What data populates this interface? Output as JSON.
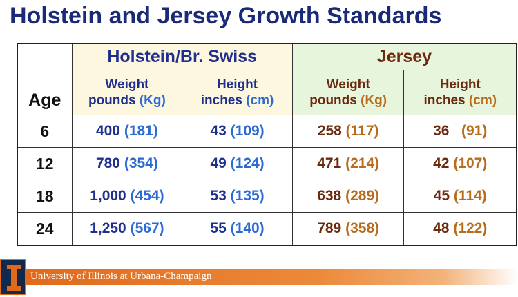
{
  "title": "Holstein and Jersey Growth Standards",
  "table": {
    "age_header": "Age",
    "groups": {
      "holstein": "Holstein/Br. Swiss",
      "jersey": "Jersey"
    },
    "subheaders": {
      "weight_line1": "Weight",
      "weight_line2_word": "pounds",
      "weight_line2_unit": "(Kg)",
      "height_line1": "Height",
      "height_line2_word": "inches",
      "height_line2_unit": "(cm)"
    },
    "rows": [
      {
        "age": "6",
        "hol_weight": "400",
        "hol_weight_kg": "(181)",
        "hol_height": "43",
        "hol_height_cm": "(109)",
        "jer_weight": "258",
        "jer_weight_kg": "(117)",
        "jer_height": "36",
        "jer_height_cm": "(91)"
      },
      {
        "age": "12",
        "hol_weight": "780",
        "hol_weight_kg": "(354)",
        "hol_height": "49",
        "hol_height_cm": "(124)",
        "jer_weight": "471",
        "jer_weight_kg": "(214)",
        "jer_height": "42",
        "jer_height_cm": "(107)"
      },
      {
        "age": "18",
        "hol_weight": "1,000",
        "hol_weight_kg": "(454)",
        "hol_height": "53",
        "hol_height_cm": "(135)",
        "jer_weight": "638",
        "jer_weight_kg": "(289)",
        "jer_height": "45",
        "jer_height_cm": "(114)"
      },
      {
        "age": "24",
        "hol_weight": "1,250",
        "hol_weight_kg": "(567)",
        "hol_height": "55",
        "hol_height_cm": "(140)",
        "jer_weight": "789",
        "jer_weight_kg": "(358)",
        "jer_height": "48",
        "jer_height_cm": "(122)"
      }
    ]
  },
  "footer": {
    "institution": "University of Illinois at Urbana-Champaign",
    "logo_icon": "block-i-logo"
  },
  "colors": {
    "title": "#1a2a78",
    "holstein_text": "#1f2f8e",
    "holstein_unit": "#2d6bd4",
    "jersey_text": "#6b2a10",
    "jersey_unit": "#b86b1a",
    "holstein_header_bg": "#fdf7df",
    "jersey_header_bg": "#e7f5dd",
    "footer_orange": "#e06a1b",
    "logo_navy": "#13294b"
  }
}
